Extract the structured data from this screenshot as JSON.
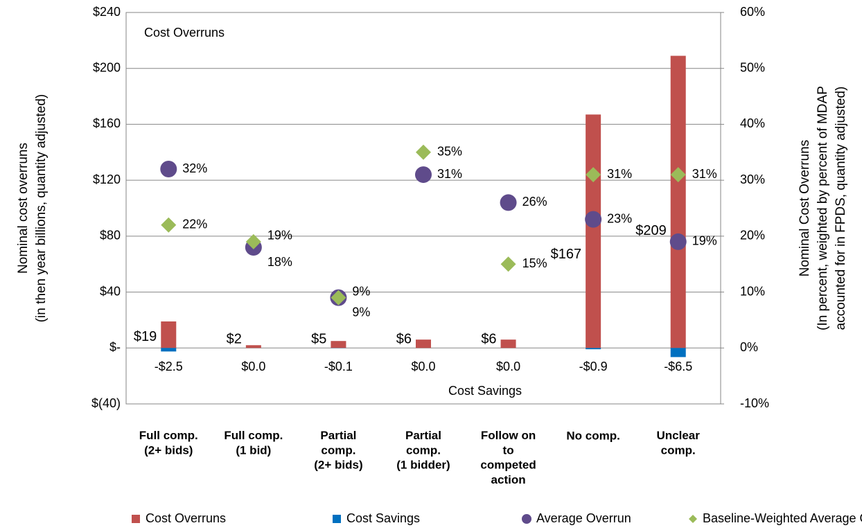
{
  "chart_data": {
    "type": "bar",
    "annotations": [
      "Cost Overruns",
      "Cost Savings"
    ],
    "y_label": [
      "Nominal cost overruns",
      "(in then year billions, quantity adjusted)"
    ],
    "y2_label": [
      "Nominal Cost Overruns",
      "(In percent, weighted by percent of MDAP",
      "accounted for in FPDS, quantity adjusted)"
    ],
    "categories": [
      "Full comp.\n(2+ bids)",
      "Full comp.\n(1 bid)",
      "Partial\ncomp.\n(2+ bids)",
      "Partial\ncomp.\n(1 bidder)",
      "Follow on\nto\ncompeted\naction",
      "No comp.",
      "Unclear\ncomp."
    ],
    "series": [
      {
        "name": "Cost Overruns",
        "color": "#c0504d",
        "values": [
          19,
          2,
          5,
          6,
          6,
          167,
          209
        ],
        "value_labels": [
          "$19",
          "$2",
          "$5",
          "$6",
          "$6",
          "$167",
          "$209"
        ]
      },
      {
        "name": "Cost Savings",
        "color": "#0070c0",
        "values": [
          -2.5,
          0.0,
          -0.1,
          0.0,
          0.0,
          -0.9,
          -6.5
        ],
        "value_labels": [
          "-$2.5",
          "$0.0",
          "-$0.1",
          "$0.0",
          "$0.0",
          "-$0.9",
          "-$6.5"
        ]
      },
      {
        "name": "Average Overrun",
        "color": "#5f4b8b",
        "type": "scatter",
        "marker": "circle",
        "axis": "y2",
        "values": [
          32,
          18,
          9,
          31,
          26,
          23,
          19
        ],
        "value_labels": [
          "32%",
          "18%",
          "9%",
          "31%",
          "26%",
          "23%",
          "19%"
        ]
      },
      {
        "name": "Baseline-Weighted Average Overrun",
        "color": "#9bbb59",
        "type": "scatter",
        "marker": "diamond",
        "axis": "y2",
        "values": [
          22,
          19,
          9,
          35,
          15,
          31,
          31
        ],
        "value_labels": [
          "22%",
          "19%",
          "9%",
          "35%",
          "15%",
          "31%",
          "31%"
        ]
      }
    ],
    "ylim": [
      -40,
      240
    ],
    "yticks": [
      {
        "value": -40,
        "label": "$(40)"
      },
      {
        "value": 0,
        "label": "$-"
      },
      {
        "value": 40,
        "label": "$40"
      },
      {
        "value": 80,
        "label": "$80"
      },
      {
        "value": 120,
        "label": "$120"
      },
      {
        "value": 160,
        "label": "$160"
      },
      {
        "value": 200,
        "label": "$200"
      },
      {
        "value": 240,
        "label": "$240"
      }
    ],
    "y2lim": [
      -10,
      60
    ],
    "y2ticks": [
      {
        "value": -10,
        "label": "-10%"
      },
      {
        "value": 0,
        "label": "0%"
      },
      {
        "value": 10,
        "label": "10%"
      },
      {
        "value": 20,
        "label": "20%"
      },
      {
        "value": 30,
        "label": "30%"
      },
      {
        "value": 40,
        "label": "40%"
      },
      {
        "value": 50,
        "label": "50%"
      },
      {
        "value": 60,
        "label": "60%"
      }
    ],
    "grid": true,
    "legend": "bottom"
  }
}
